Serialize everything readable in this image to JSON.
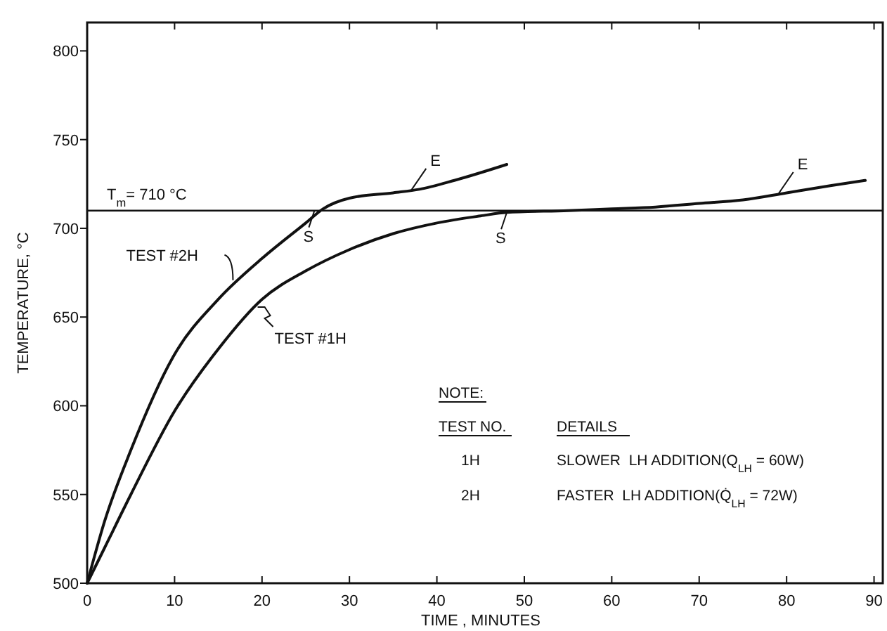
{
  "chart_data": {
    "type": "line",
    "xlabel": "TIME , MINUTES",
    "ylabel": "TEMPERATURE, °C",
    "xlim": [
      0,
      91
    ],
    "ylim": [
      500,
      816
    ],
    "xticks": [
      0,
      10,
      20,
      30,
      40,
      50,
      60,
      70,
      80,
      90
    ],
    "yticks": [
      500,
      550,
      600,
      650,
      700,
      750,
      800
    ],
    "grid": false,
    "marker": "none",
    "line_style": "solid",
    "series": [
      {
        "name": "TEST #2H",
        "color": "#111111",
        "x": [
          0,
          2,
          5,
          10,
          15,
          20,
          25,
          27,
          30,
          35,
          38,
          42,
          48
        ],
        "values": [
          500,
          535,
          575,
          629,
          660,
          683,
          703,
          711,
          717,
          720,
          722,
          727,
          736
        ]
      },
      {
        "name": "TEST #1H",
        "color": "#111111",
        "x": [
          0,
          2,
          5,
          10,
          15,
          20,
          25,
          30,
          35,
          40,
          45,
          48,
          55,
          60,
          65,
          70,
          75,
          80,
          85,
          89
        ],
        "values": [
          500,
          520,
          550,
          597,
          632,
          660,
          676,
          688,
          697,
          703,
          707,
          709,
          710,
          711,
          712,
          714,
          716,
          720,
          724,
          727
        ]
      }
    ],
    "ref_lines": [
      {
        "axis": "y",
        "value": 710,
        "label": "T$_{m}$= 710 °C",
        "color": "#111111",
        "line_style": "solid"
      }
    ],
    "annotations": [
      {
        "text": "S",
        "x": 26,
        "y": 710
      },
      {
        "text": "S",
        "x": 48,
        "y": 709
      },
      {
        "text": "E",
        "x": 37,
        "y": 721
      },
      {
        "text": "E",
        "x": 79,
        "y": 719
      },
      "NOTE:",
      "TEST NO.",
      "DETAILS",
      "1H",
      "SLOWER  LH ADDITION(Q$_{LH}$ = 60W)",
      "2H",
      "FASTER  LH ADDITION(Q̇$_{LH}$ = 72W)"
    ]
  }
}
